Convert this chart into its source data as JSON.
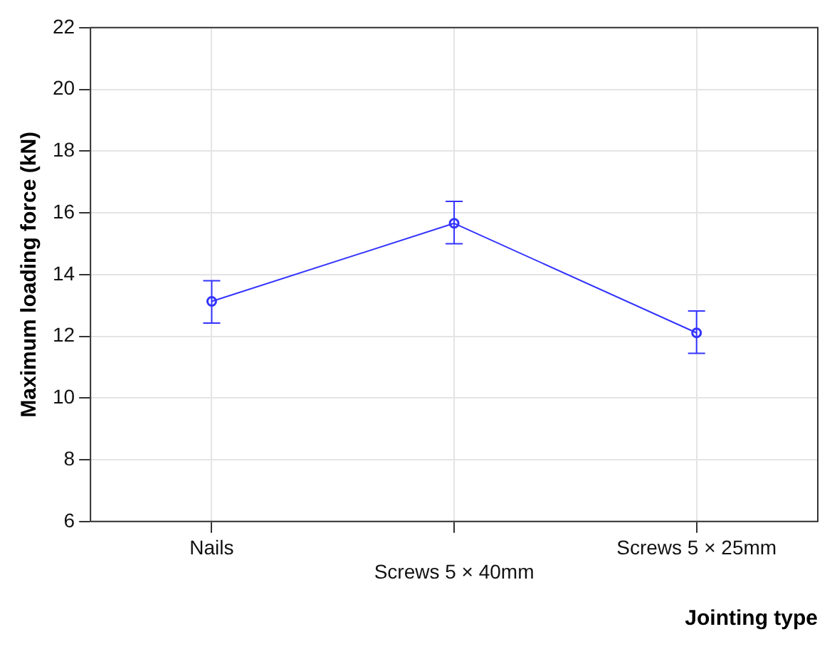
{
  "chart_data": {
    "type": "line",
    "xlabel": "Jointing type",
    "ylabel": "Maximum loading force (kN)",
    "categories": [
      "Nails",
      "Screws 5 × 40mm",
      "Screws 5 × 25mm"
    ],
    "series": [
      {
        "color": "#3333ff",
        "values": [
          13.13,
          15.66,
          12.11
        ],
        "errors": [
          [
            12.43,
            13.8
          ],
          [
            15.0,
            16.37
          ],
          [
            11.45,
            12.82
          ]
        ]
      }
    ],
    "ylim": [
      6,
      22
    ],
    "yticks": [
      6,
      8,
      10,
      12,
      14,
      16,
      18,
      20,
      22
    ],
    "grid": true,
    "legend": false,
    "marker": "circle",
    "line_style": "solid"
  }
}
